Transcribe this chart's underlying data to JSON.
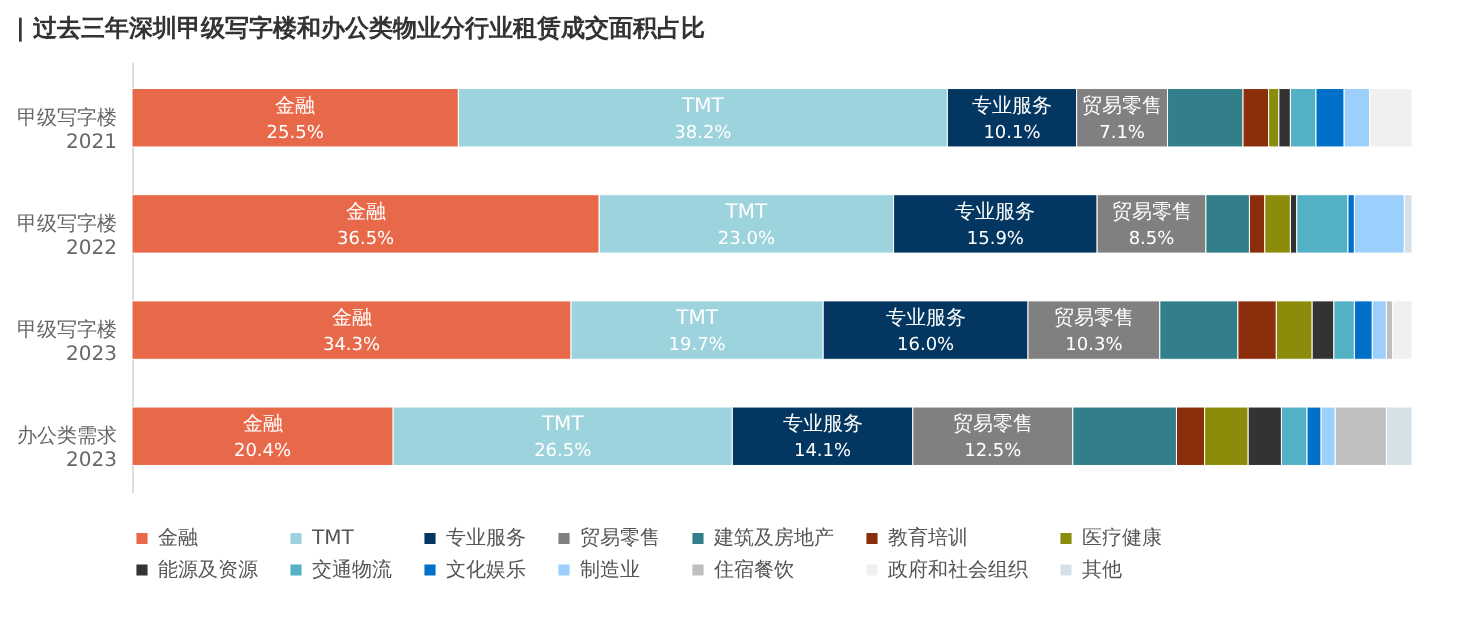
{
  "chart_data": {
    "type": "bar",
    "orientation": "horizontal",
    "stacked": true,
    "title": "| 过去三年深圳甲级写字楼和办公类物业分行业租赁成交面积占比",
    "categories": [
      "甲级写字楼\n2021",
      "甲级写字楼\n2022",
      "甲级写字楼\n2023",
      "办公类需求\n2023"
    ],
    "xlim": [
      0,
      100
    ],
    "legend": "bottom",
    "grid": false,
    "series": [
      {
        "name": "金融",
        "color": "#e8694a",
        "values": [
          25.5,
          36.5,
          34.3,
          20.4
        ],
        "value_labels": [
          "25.5%",
          "36.5%",
          "34.3%",
          "20.4%"
        ]
      },
      {
        "name": "TMT",
        "color": "#9dd3dc",
        "values": [
          38.2,
          23.0,
          19.7,
          26.5
        ],
        "value_labels": [
          "38.2%",
          "23.0%",
          "19.7%",
          "26.5%"
        ]
      },
      {
        "name": "专业服务",
        "color": "#033660",
        "values": [
          10.1,
          15.9,
          16.0,
          14.1
        ],
        "value_labels": [
          "10.1%",
          "15.9%",
          "16.0%",
          "14.1%"
        ]
      },
      {
        "name": "贸易零售",
        "color": "#808080",
        "values": [
          7.1,
          8.5,
          10.3,
          12.5
        ],
        "value_labels": [
          "7.1%",
          "8.5%",
          "10.3%",
          "12.5%"
        ]
      },
      {
        "name": "建筑及房地产",
        "color": "#327e8a",
        "values": [
          5.9,
          3.4,
          6.1,
          8.1
        ]
      },
      {
        "name": "教育培训",
        "color": "#8b2e0c",
        "values": [
          2.0,
          1.2,
          3.0,
          2.2
        ]
      },
      {
        "name": "医疗健康",
        "color": "#8b8c0a",
        "values": [
          0.8,
          2.0,
          2.8,
          3.4
        ]
      },
      {
        "name": "能源及资源",
        "color": "#333333",
        "values": [
          0.9,
          0.5,
          1.7,
          2.6
        ]
      },
      {
        "name": "交通物流",
        "color": "#54b0c4",
        "values": [
          2.0,
          4.0,
          1.6,
          2.0
        ]
      },
      {
        "name": "文化娱乐",
        "color": "#0070c9",
        "values": [
          2.2,
          0.5,
          1.4,
          1.1
        ]
      },
      {
        "name": "制造业",
        "color": "#9ccffb",
        "values": [
          2.0,
          3.9,
          1.1,
          1.1
        ]
      },
      {
        "name": "住宿餐饮",
        "color": "#bfbfbf",
        "values": [
          null,
          null,
          0.5,
          4.0
        ]
      },
      {
        "name": "政府和社会组织",
        "color": "#f0f0f0",
        "values": [
          3.3,
          null,
          1.5,
          null
        ]
      },
      {
        "name": "其他",
        "color": "#d5e1e6",
        "values": [
          null,
          0.6,
          null,
          2.0
        ]
      }
    ]
  }
}
